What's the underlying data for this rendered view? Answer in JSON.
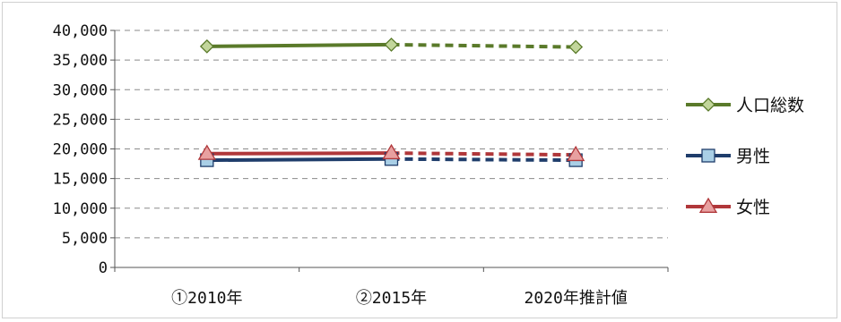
{
  "chart_data": {
    "type": "line",
    "categories": [
      "①2010年",
      "②2015年",
      "2020年推計値"
    ],
    "ylim": [
      0,
      40000
    ],
    "yticks": [
      0,
      5000,
      10000,
      15000,
      20000,
      25000,
      30000,
      35000,
      40000
    ],
    "ytick_labels": [
      "0",
      "5,000",
      "10,000",
      "15,000",
      "20,000",
      "25,000",
      "30,000",
      "35,000",
      "40,000"
    ],
    "grid": "horizontal dashed",
    "legend_position": "right",
    "series": [
      {
        "name": "人口総数",
        "values": [
          37300,
          37600,
          37200
        ],
        "color": "#5a7a2a",
        "marker_fill": "#c2d69b",
        "marker": "diamond",
        "dashed_from_index": 1
      },
      {
        "name": "男性",
        "values": [
          18100,
          18300,
          18100
        ],
        "color": "#1f3d6b",
        "marker_fill": "#a9cfe6",
        "marker": "square",
        "dashed_from_index": 1
      },
      {
        "name": "女性",
        "values": [
          19200,
          19300,
          19000
        ],
        "color": "#b0373a",
        "marker_fill": "#e8a0a0",
        "marker": "triangle",
        "dashed_from_index": 1
      }
    ]
  }
}
